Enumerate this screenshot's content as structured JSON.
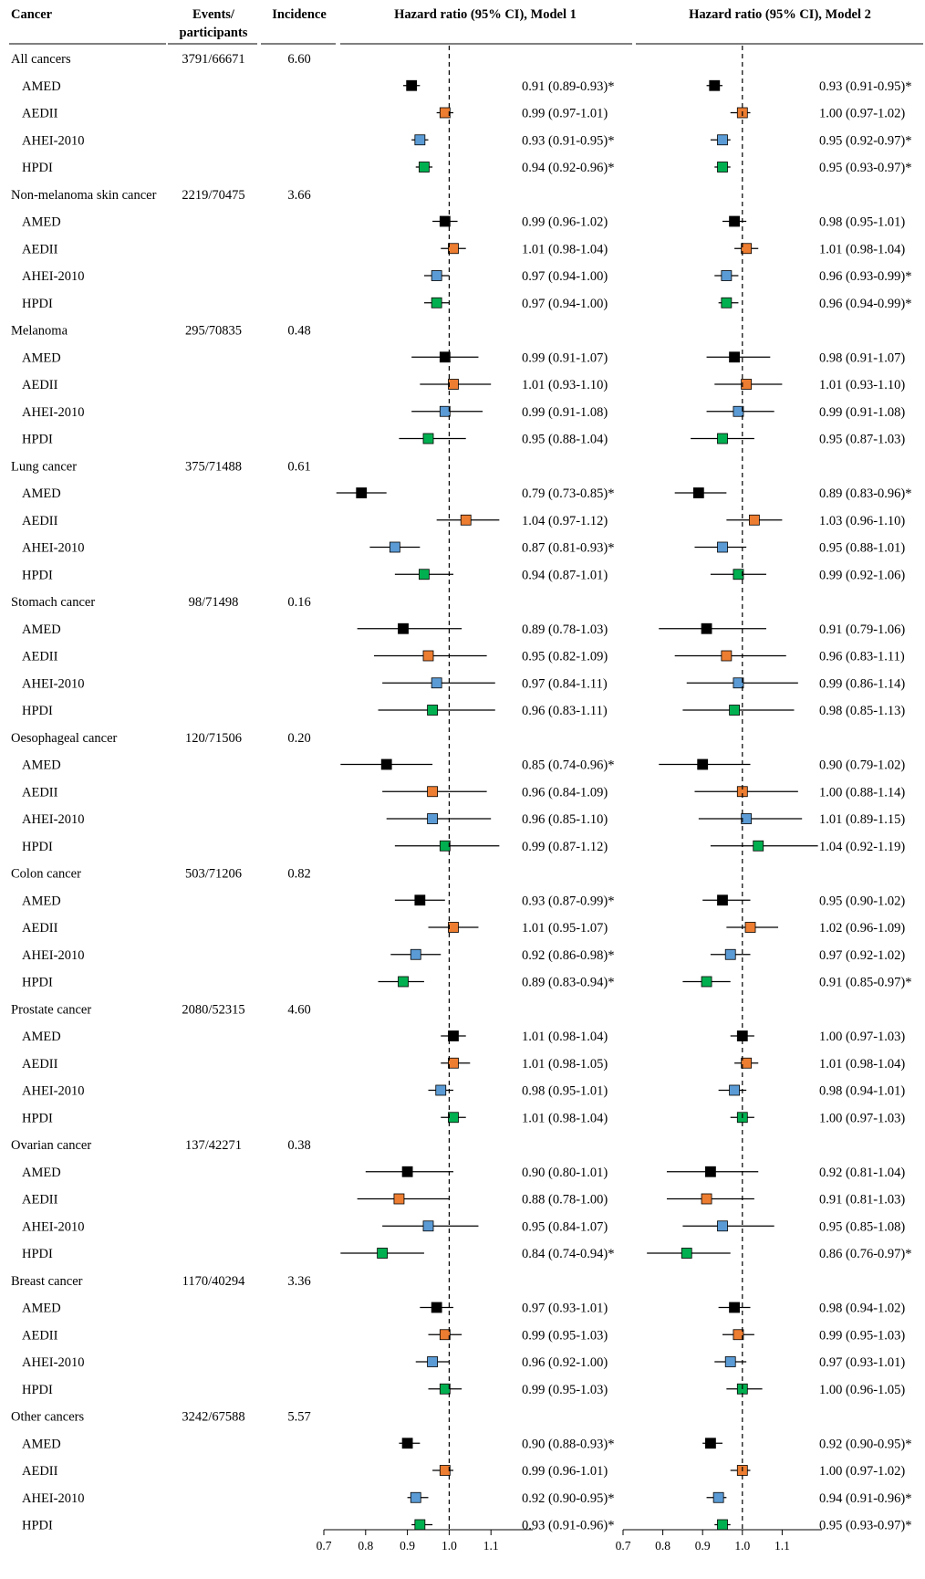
{
  "headers": {
    "cancer": "Cancer",
    "events_line1": "Events/",
    "events_line2": "participants",
    "incidence": "Incidence",
    "model1": "Hazard ratio (95% CI), Model 1",
    "model2": "Hazard ratio (95% CI), Model 2"
  },
  "colors": {
    "AMED": "#000000",
    "AEDII": "#ed7d31",
    "AHEI-2010": "#5b9bd5",
    "HPDI": "#00b050"
  },
  "chart_data": {
    "type": "forest",
    "xlim": [
      0.7,
      1.2
    ],
    "reference_line": 1.0,
    "ticks": [
      "0.7",
      "0.8",
      "0.9",
      "1.0",
      "1.1"
    ],
    "tick_values": [
      0.7,
      0.8,
      0.9,
      1.0,
      1.1
    ],
    "groups": [
      {
        "name": "All cancers",
        "events": "3791/66671",
        "incidence": "6.60",
        "rows": [
          {
            "label": "AMED",
            "m1": [
              0.91,
              0.89,
              0.93
            ],
            "m1_text": "0.91 (0.89-0.93)*",
            "m2": [
              0.93,
              0.91,
              0.95
            ],
            "m2_text": "0.93 (0.91-0.95)*"
          },
          {
            "label": "AEDII",
            "m1": [
              0.99,
              0.97,
              1.01
            ],
            "m1_text": "0.99 (0.97-1.01)",
            "m2": [
              1.0,
              0.97,
              1.02
            ],
            "m2_text": "1.00 (0.97-1.02)"
          },
          {
            "label": "AHEI-2010",
            "m1": [
              0.93,
              0.91,
              0.95
            ],
            "m1_text": "0.93 (0.91-0.95)*",
            "m2": [
              0.95,
              0.92,
              0.97
            ],
            "m2_text": "0.95 (0.92-0.97)*"
          },
          {
            "label": "HPDI",
            "m1": [
              0.94,
              0.92,
              0.96
            ],
            "m1_text": "0.94 (0.92-0.96)*",
            "m2": [
              0.95,
              0.93,
              0.97
            ],
            "m2_text": "0.95 (0.93-0.97)*"
          }
        ]
      },
      {
        "name": "Non-melanoma skin cancer",
        "events": "2219/70475",
        "incidence": "3.66",
        "rows": [
          {
            "label": "AMED",
            "m1": [
              0.99,
              0.96,
              1.02
            ],
            "m1_text": "0.99 (0.96-1.02)",
            "m2": [
              0.98,
              0.95,
              1.01
            ],
            "m2_text": "0.98 (0.95-1.01)"
          },
          {
            "label": "AEDII",
            "m1": [
              1.01,
              0.98,
              1.04
            ],
            "m1_text": "1.01 (0.98-1.04)",
            "m2": [
              1.01,
              0.98,
              1.04
            ],
            "m2_text": "1.01 (0.98-1.04)"
          },
          {
            "label": "AHEI-2010",
            "m1": [
              0.97,
              0.94,
              1.0
            ],
            "m1_text": "0.97 (0.94-1.00)",
            "m2": [
              0.96,
              0.93,
              0.99
            ],
            "m2_text": "0.96 (0.93-0.99)*"
          },
          {
            "label": "HPDI",
            "m1": [
              0.97,
              0.94,
              1.0
            ],
            "m1_text": "0.97 (0.94-1.00)",
            "m2": [
              0.96,
              0.94,
              0.99
            ],
            "m2_text": "0.96 (0.94-0.99)*"
          }
        ]
      },
      {
        "name": "Melanoma",
        "events": "295/70835",
        "incidence": "0.48",
        "rows": [
          {
            "label": "AMED",
            "m1": [
              0.99,
              0.91,
              1.07
            ],
            "m1_text": "0.99 (0.91-1.07)",
            "m2": [
              0.98,
              0.91,
              1.07
            ],
            "m2_text": "0.98 (0.91-1.07)"
          },
          {
            "label": "AEDII",
            "m1": [
              1.01,
              0.93,
              1.1
            ],
            "m1_text": "1.01 (0.93-1.10)",
            "m2": [
              1.01,
              0.93,
              1.1
            ],
            "m2_text": "1.01 (0.93-1.10)"
          },
          {
            "label": "AHEI-2010",
            "m1": [
              0.99,
              0.91,
              1.08
            ],
            "m1_text": "0.99 (0.91-1.08)",
            "m2": [
              0.99,
              0.91,
              1.08
            ],
            "m2_text": "0.99 (0.91-1.08)"
          },
          {
            "label": "HPDI",
            "m1": [
              0.95,
              0.88,
              1.04
            ],
            "m1_text": "0.95 (0.88-1.04)",
            "m2": [
              0.95,
              0.87,
              1.03
            ],
            "m2_text": "0.95 (0.87-1.03)"
          }
        ]
      },
      {
        "name": "Lung cancer",
        "events": "375/71488",
        "incidence": "0.61",
        "rows": [
          {
            "label": "AMED",
            "m1": [
              0.79,
              0.73,
              0.85
            ],
            "m1_text": "0.79 (0.73-0.85)*",
            "m2": [
              0.89,
              0.83,
              0.96
            ],
            "m2_text": "0.89 (0.83-0.96)*"
          },
          {
            "label": "AEDII",
            "m1": [
              1.04,
              0.97,
              1.12
            ],
            "m1_text": "1.04 (0.97-1.12)",
            "m2": [
              1.03,
              0.96,
              1.1
            ],
            "m2_text": "1.03 (0.96-1.10)"
          },
          {
            "label": "AHEI-2010",
            "m1": [
              0.87,
              0.81,
              0.93
            ],
            "m1_text": "0.87 (0.81-0.93)*",
            "m2": [
              0.95,
              0.88,
              1.01
            ],
            "m2_text": "0.95 (0.88-1.01)"
          },
          {
            "label": "HPDI",
            "m1": [
              0.94,
              0.87,
              1.01
            ],
            "m1_text": "0.94 (0.87-1.01)",
            "m2": [
              0.99,
              0.92,
              1.06
            ],
            "m2_text": "0.99 (0.92-1.06)"
          }
        ]
      },
      {
        "name": "Stomach cancer",
        "events": "98/71498",
        "incidence": "0.16",
        "rows": [
          {
            "label": "AMED",
            "m1": [
              0.89,
              0.78,
              1.03
            ],
            "m1_text": "0.89 (0.78-1.03)",
            "m2": [
              0.91,
              0.79,
              1.06
            ],
            "m2_text": "0.91 (0.79-1.06)"
          },
          {
            "label": "AEDII",
            "m1": [
              0.95,
              0.82,
              1.09
            ],
            "m1_text": "0.95 (0.82-1.09)",
            "m2": [
              0.96,
              0.83,
              1.11
            ],
            "m2_text": "0.96 (0.83-1.11)"
          },
          {
            "label": "AHEI-2010",
            "m1": [
              0.97,
              0.84,
              1.11
            ],
            "m1_text": "0.97 (0.84-1.11)",
            "m2": [
              0.99,
              0.86,
              1.14
            ],
            "m2_text": "0.99 (0.86-1.14)"
          },
          {
            "label": "HPDI",
            "m1": [
              0.96,
              0.83,
              1.11
            ],
            "m1_text": "0.96 (0.83-1.11)",
            "m2": [
              0.98,
              0.85,
              1.13
            ],
            "m2_text": "0.98 (0.85-1.13)"
          }
        ]
      },
      {
        "name": "Oesophageal cancer",
        "events": "120/71506",
        "incidence": "0.20",
        "rows": [
          {
            "label": "AMED",
            "m1": [
              0.85,
              0.74,
              0.96
            ],
            "m1_text": "0.85 (0.74-0.96)*",
            "m2": [
              0.9,
              0.79,
              1.02
            ],
            "m2_text": "0.90 (0.79-1.02)"
          },
          {
            "label": "AEDII",
            "m1": [
              0.96,
              0.84,
              1.09
            ],
            "m1_text": "0.96 (0.84-1.09)",
            "m2": [
              1.0,
              0.88,
              1.14
            ],
            "m2_text": "1.00 (0.88-1.14)"
          },
          {
            "label": "AHEI-2010",
            "m1": [
              0.96,
              0.85,
              1.1
            ],
            "m1_text": "0.96 (0.85-1.10)",
            "m2": [
              1.01,
              0.89,
              1.15
            ],
            "m2_text": "1.01 (0.89-1.15)"
          },
          {
            "label": "HPDI",
            "m1": [
              0.99,
              0.87,
              1.12
            ],
            "m1_text": "0.99 (0.87-1.12)",
            "m2": [
              1.04,
              0.92,
              1.19
            ],
            "m2_text": "1.04 (0.92-1.19)"
          }
        ]
      },
      {
        "name": "Colon cancer",
        "events": "503/71206",
        "incidence": "0.82",
        "rows": [
          {
            "label": "AMED",
            "m1": [
              0.93,
              0.87,
              0.99
            ],
            "m1_text": "0.93 (0.87-0.99)*",
            "m2": [
              0.95,
              0.9,
              1.02
            ],
            "m2_text": "0.95 (0.90-1.02)"
          },
          {
            "label": "AEDII",
            "m1": [
              1.01,
              0.95,
              1.07
            ],
            "m1_text": "1.01 (0.95-1.07)",
            "m2": [
              1.02,
              0.96,
              1.09
            ],
            "m2_text": "1.02 (0.96-1.09)"
          },
          {
            "label": "AHEI-2010",
            "m1": [
              0.92,
              0.86,
              0.98
            ],
            "m1_text": "0.92 (0.86-0.98)*",
            "m2": [
              0.97,
              0.92,
              1.02
            ],
            "m2_text": "0.97 (0.92-1.02)"
          },
          {
            "label": "HPDI",
            "m1": [
              0.89,
              0.83,
              0.94
            ],
            "m1_text": "0.89 (0.83-0.94)*",
            "m2": [
              0.91,
              0.85,
              0.97
            ],
            "m2_text": "0.91 (0.85-0.97)*"
          }
        ]
      },
      {
        "name": "Prostate cancer",
        "events": "2080/52315",
        "incidence": "4.60",
        "rows": [
          {
            "label": "AMED",
            "m1": [
              1.01,
              0.98,
              1.04
            ],
            "m1_text": "1.01 (0.98-1.04)",
            "m2": [
              1.0,
              0.97,
              1.03
            ],
            "m2_text": "1.00 (0.97-1.03)"
          },
          {
            "label": "AEDII",
            "m1": [
              1.01,
              0.98,
              1.05
            ],
            "m1_text": "1.01 (0.98-1.05)",
            "m2": [
              1.01,
              0.98,
              1.04
            ],
            "m2_text": "1.01 (0.98-1.04)"
          },
          {
            "label": "AHEI-2010",
            "m1": [
              0.98,
              0.95,
              1.01
            ],
            "m1_text": "0.98 (0.95-1.01)",
            "m2": [
              0.98,
              0.94,
              1.01
            ],
            "m2_text": "0.98 (0.94-1.01)"
          },
          {
            "label": "HPDI",
            "m1": [
              1.01,
              0.98,
              1.04
            ],
            "m1_text": "1.01 (0.98-1.04)",
            "m2": [
              1.0,
              0.97,
              1.03
            ],
            "m2_text": "1.00 (0.97-1.03)"
          }
        ]
      },
      {
        "name": "Ovarian cancer",
        "events": "137/42271",
        "incidence": "0.38",
        "rows": [
          {
            "label": "AMED",
            "m1": [
              0.9,
              0.8,
              1.01
            ],
            "m1_text": "0.90 (0.80-1.01)",
            "m2": [
              0.92,
              0.81,
              1.04
            ],
            "m2_text": "0.92 (0.81-1.04)"
          },
          {
            "label": "AEDII",
            "m1": [
              0.88,
              0.78,
              1.0
            ],
            "m1_text": "0.88 (0.78-1.00)",
            "m2": [
              0.91,
              0.81,
              1.03
            ],
            "m2_text": "0.91 (0.81-1.03)"
          },
          {
            "label": "AHEI-2010",
            "m1": [
              0.95,
              0.84,
              1.07
            ],
            "m1_text": "0.95 (0.84-1.07)",
            "m2": [
              0.95,
              0.85,
              1.08
            ],
            "m2_text": "0.95 (0.85-1.08)"
          },
          {
            "label": "HPDI",
            "m1": [
              0.84,
              0.74,
              0.94
            ],
            "m1_text": "0.84 (0.74-0.94)*",
            "m2": [
              0.86,
              0.76,
              0.97
            ],
            "m2_text": "0.86 (0.76-0.97)*"
          }
        ]
      },
      {
        "name": "Breast cancer",
        "events": "1170/40294",
        "incidence": "3.36",
        "rows": [
          {
            "label": "AMED",
            "m1": [
              0.97,
              0.93,
              1.01
            ],
            "m1_text": "0.97 (0.93-1.01)",
            "m2": [
              0.98,
              0.94,
              1.02
            ],
            "m2_text": "0.98 (0.94-1.02)"
          },
          {
            "label": "AEDII",
            "m1": [
              0.99,
              0.95,
              1.03
            ],
            "m1_text": "0.99 (0.95-1.03)",
            "m2": [
              0.99,
              0.95,
              1.03
            ],
            "m2_text": "0.99 (0.95-1.03)"
          },
          {
            "label": "AHEI-2010",
            "m1": [
              0.96,
              0.92,
              1.0
            ],
            "m1_text": "0.96 (0.92-1.00)",
            "m2": [
              0.97,
              0.93,
              1.01
            ],
            "m2_text": "0.97 (0.93-1.01)"
          },
          {
            "label": "HPDI",
            "m1": [
              0.99,
              0.95,
              1.03
            ],
            "m1_text": "0.99 (0.95-1.03)",
            "m2": [
              1.0,
              0.96,
              1.05
            ],
            "m2_text": "1.00 (0.96-1.05)"
          }
        ]
      },
      {
        "name": "Other cancers",
        "events": "3242/67588",
        "incidence": "5.57",
        "rows": [
          {
            "label": "AMED",
            "m1": [
              0.9,
              0.88,
              0.93
            ],
            "m1_text": "0.90 (0.88-0.93)*",
            "m2": [
              0.92,
              0.9,
              0.95
            ],
            "m2_text": "0.92 (0.90-0.95)*"
          },
          {
            "label": "AEDII",
            "m1": [
              0.99,
              0.96,
              1.01
            ],
            "m1_text": "0.99 (0.96-1.01)",
            "m2": [
              1.0,
              0.97,
              1.02
            ],
            "m2_text": "1.00 (0.97-1.02)"
          },
          {
            "label": "AHEI-2010",
            "m1": [
              0.92,
              0.9,
              0.95
            ],
            "m1_text": "0.92 (0.90-0.95)*",
            "m2": [
              0.94,
              0.91,
              0.96
            ],
            "m2_text": "0.94 (0.91-0.96)*"
          },
          {
            "label": "HPDI",
            "m1": [
              0.93,
              0.91,
              0.96
            ],
            "m1_text": "0.93 (0.91-0.96)*",
            "m2": [
              0.95,
              0.93,
              0.97
            ],
            "m2_text": "0.95 (0.93-0.97)*"
          }
        ]
      }
    ]
  }
}
